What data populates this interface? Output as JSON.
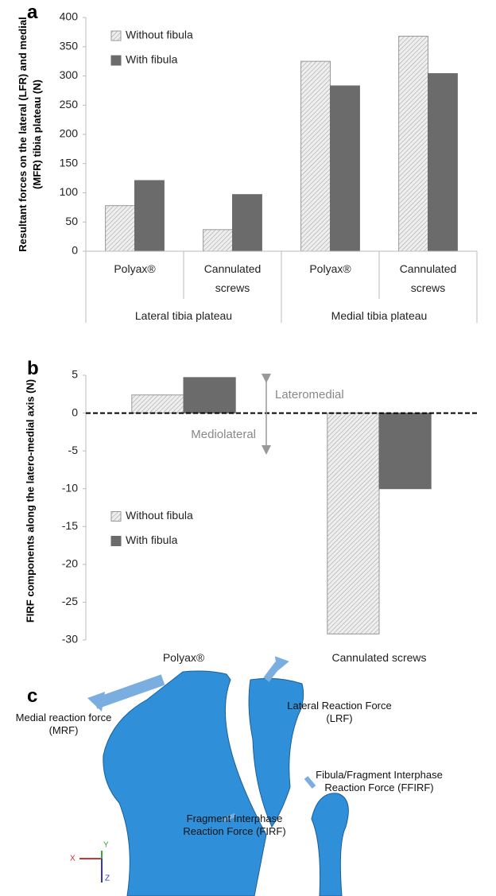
{
  "chart_data": [
    {
      "type": "bar",
      "panel": "a",
      "ylabel": "Resultant forces on the lateral (LFR) and medial (MFR) tibia plateau (N)",
      "categories": [
        "Polyax®",
        "Cannulated screws",
        "Polyax®",
        "Cannulated screws"
      ],
      "groups": [
        "Lateral tibia plateau",
        "Medial tibia plateau"
      ],
      "series": [
        {
          "name": "Without fibula",
          "color": "#d9d9d9",
          "hatch": true,
          "values": [
            78,
            37,
            325,
            368
          ]
        },
        {
          "name": "With fibula",
          "color": "#6b6b6b",
          "hatch": false,
          "values": [
            121,
            97,
            283,
            304
          ]
        }
      ],
      "ylim": [
        0,
        400
      ],
      "yticks": [
        0,
        50,
        100,
        150,
        200,
        250,
        300,
        350,
        400
      ],
      "grid": false,
      "legend": "upper left"
    },
    {
      "type": "bar",
      "panel": "b",
      "ylabel": "FIRF components along the latero-medial axis (N)",
      "categories": [
        "Polyax®",
        "Cannulated screws"
      ],
      "series": [
        {
          "name": "Without fibula",
          "color": "#d9d9d9",
          "hatch": true,
          "values": [
            2.4,
            -29.2
          ]
        },
        {
          "name": "With fibula",
          "color": "#6b6b6b",
          "hatch": false,
          "values": [
            4.7,
            -10
          ]
        }
      ],
      "ylim": [
        -30,
        5
      ],
      "yticks": [
        5,
        0,
        -5,
        -10,
        -15,
        -20,
        -25,
        -30
      ],
      "grid": false,
      "legend": "center left",
      "annotations": [
        "Lateromedial",
        "Mediolateral"
      ]
    }
  ],
  "diagram": {
    "panel": "c",
    "labels": [
      "Medial reaction force (MRF)",
      "Lateral Reaction Force (LRF)",
      "Fibula/Fragment Interphase Reaction Force (FFIRF)",
      "Fragment Interphase Reaction Force (FIRF)"
    ],
    "axes": [
      "X",
      "Y",
      "Z"
    ]
  }
}
